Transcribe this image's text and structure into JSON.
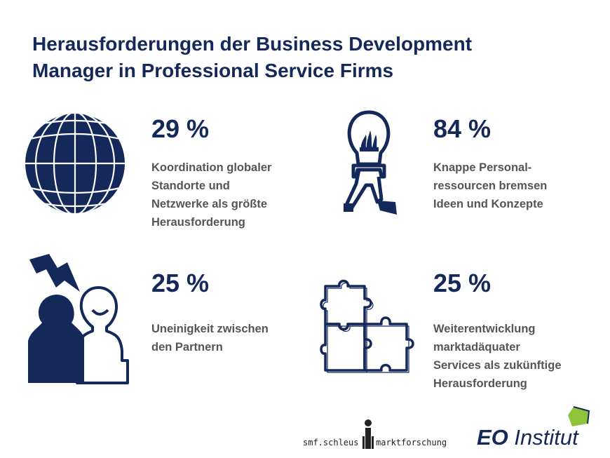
{
  "title": {
    "line1": "Herausforderungen der Business Development",
    "line2": "Manager in Professional Service Firms"
  },
  "items": [
    {
      "icon": "globe-icon",
      "percent": "29 %",
      "lines": [
        "Koordination globaler",
        "Standorte und",
        "Netzwerke als größte",
        "Herausforderung"
      ]
    },
    {
      "icon": "lightbulb-person-icon",
      "percent": "84 %",
      "lines": [
        "Knappe Personal-",
        "ressourcen bremsen",
        "Ideen und Konzepte"
      ]
    },
    {
      "icon": "conflict-lightning-icon",
      "percent": "25 %",
      "lines": [
        "Uneinigkeit zwischen",
        "den Partnern"
      ]
    },
    {
      "icon": "puzzle-icon",
      "percent": "25 %",
      "lines": [
        "Weiterentwicklung",
        "marktadäquater",
        "Services als zukünftige",
        "Herausforderung"
      ]
    }
  ],
  "logos": {
    "smf_left": "smf.schleus",
    "smf_right": "marktforschung",
    "eo_bold": "EO",
    "eo_rest": " Institut"
  },
  "colors": {
    "navy": "#14285a",
    "text": "#555555",
    "eo_green": "#8fc43a"
  }
}
